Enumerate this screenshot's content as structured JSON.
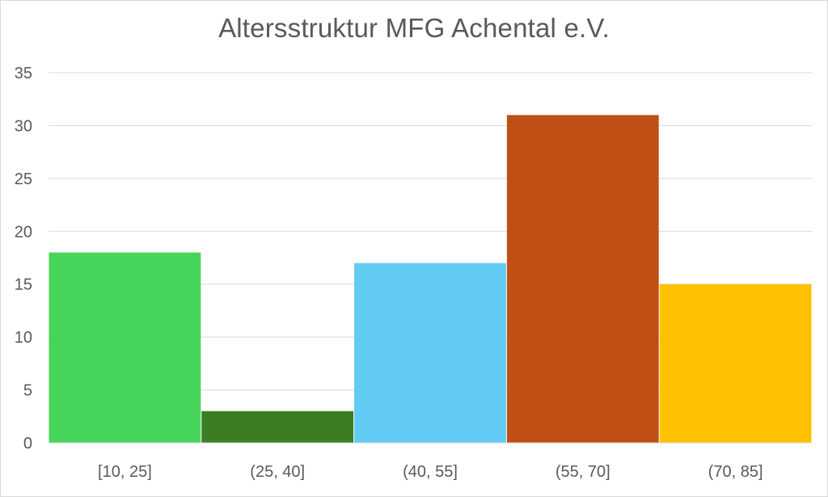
{
  "chart_data": {
    "type": "bar",
    "title": "Altersstruktur MFG Achental e.V.",
    "xlabel": "",
    "ylabel": "",
    "categories": [
      "[10, 25]",
      "(25, 40]",
      "(40, 55]",
      "(55, 70]",
      "(70, 85]"
    ],
    "values": [
      18,
      3,
      17,
      31,
      15
    ],
    "colors": [
      "#47d45b",
      "#3a7d22",
      "#61cbf4",
      "#c04f15",
      "#ffc000"
    ],
    "ylim": [
      0,
      35
    ],
    "yticks": [
      0,
      5,
      10,
      15,
      20,
      25,
      30,
      35
    ],
    "grid": true,
    "legend": "none"
  }
}
